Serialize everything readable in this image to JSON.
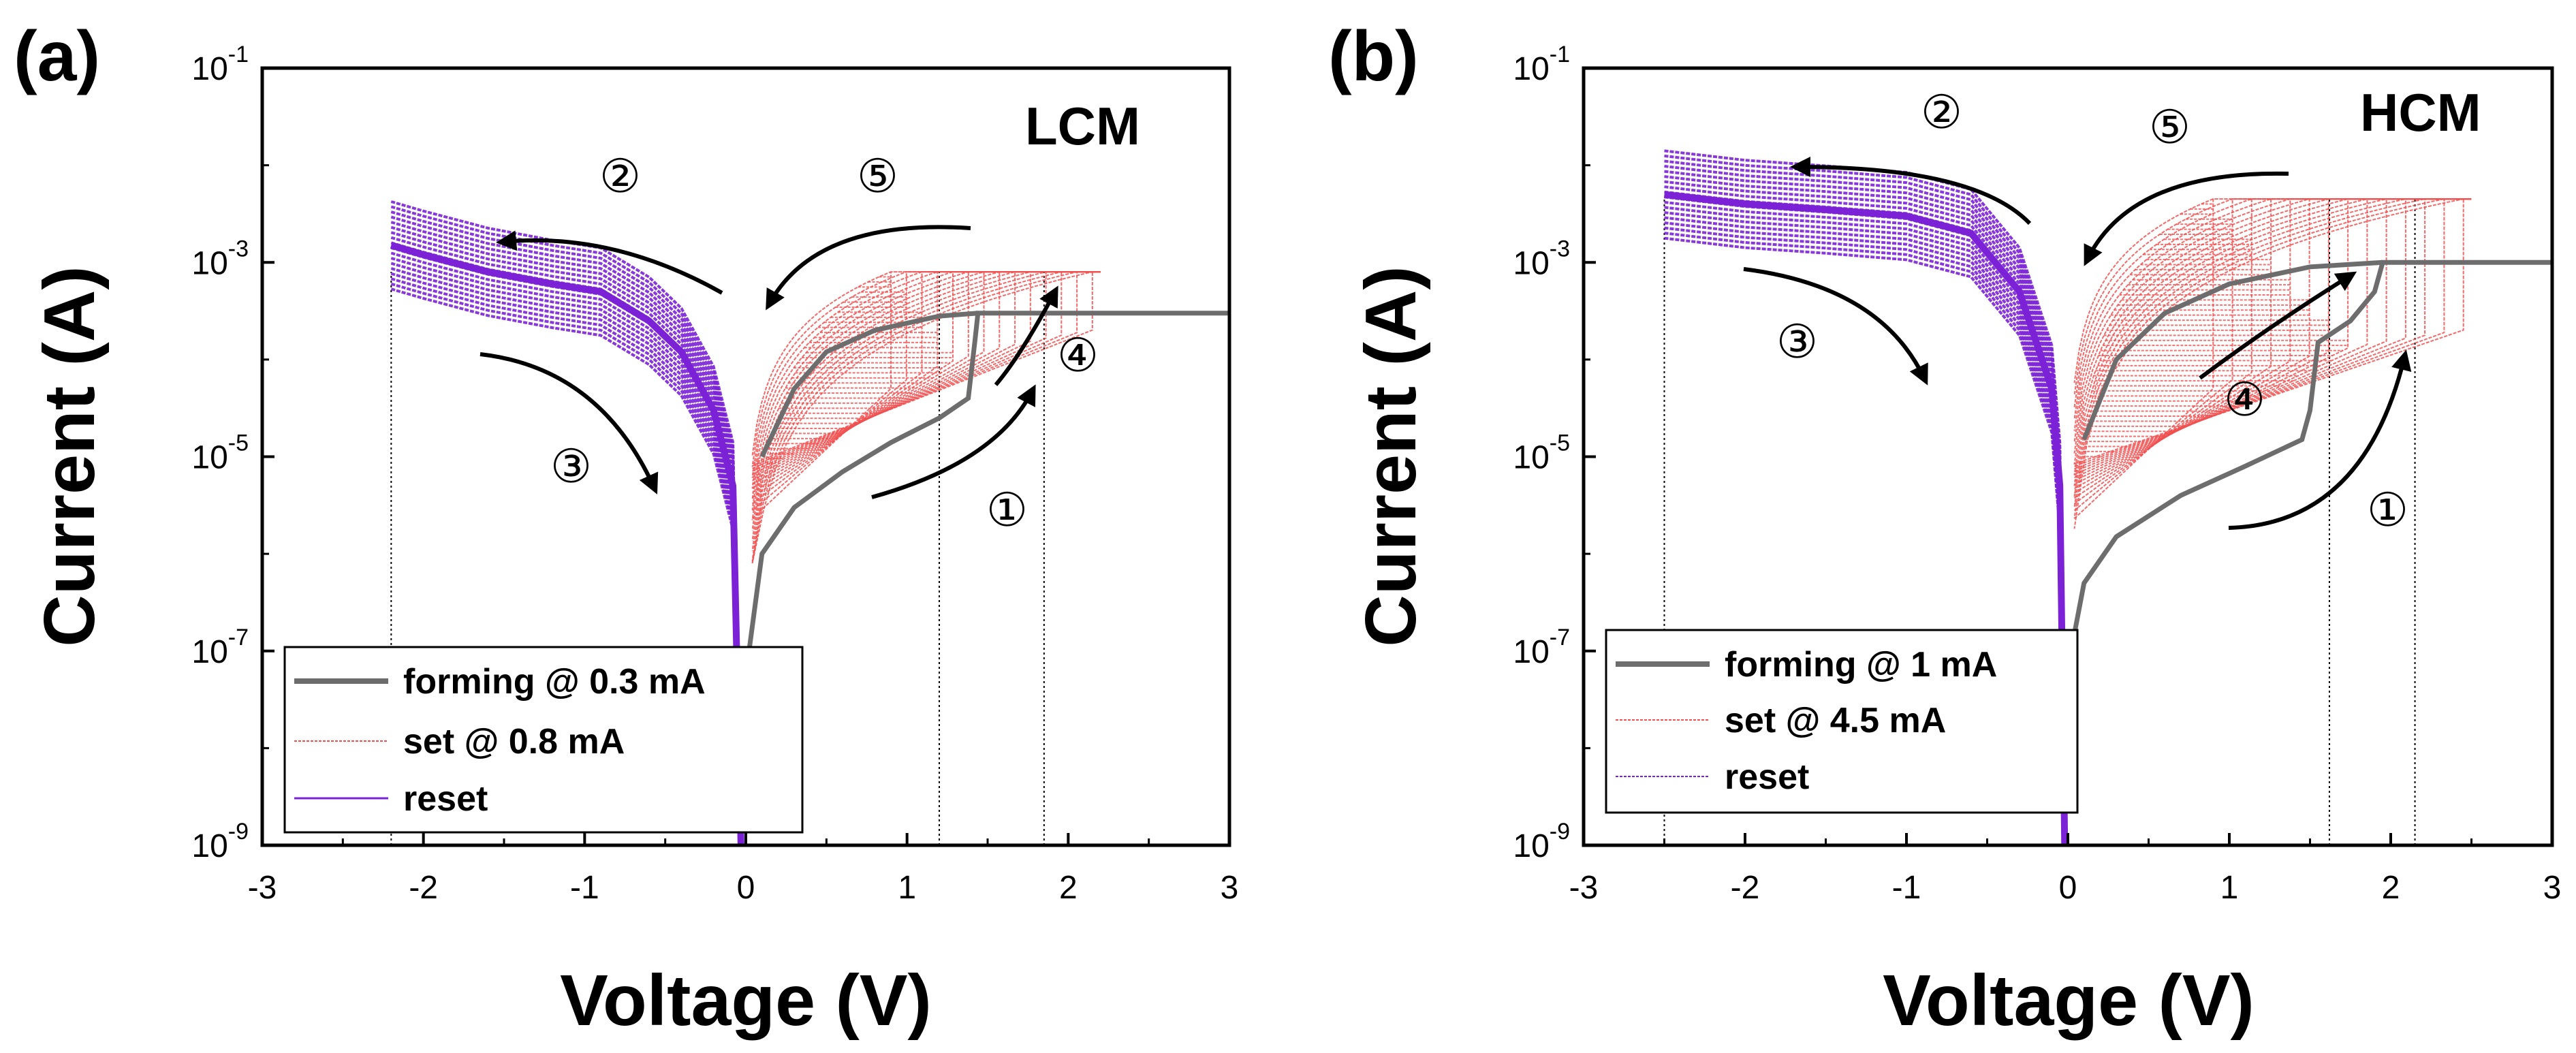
{
  "chart_data": [
    {
      "type": "line",
      "panel_label": "(a)",
      "inset_label": "LCM",
      "xlabel": "Voltage (V)",
      "ylabel": "Current (A)",
      "xlim": [
        -3,
        3
      ],
      "ylim": [
        1e-09,
        0.1
      ],
      "yscale": "log",
      "x_ticks": [
        "-3",
        "-2",
        "-1",
        "0",
        "1",
        "2",
        "3"
      ],
      "y_ticks": [
        {
          "base": "10",
          "exp": "-9"
        },
        {
          "base": "10",
          "exp": "-7"
        },
        {
          "base": "10",
          "exp": "-5"
        },
        {
          "base": "10",
          "exp": "-3"
        },
        {
          "base": "10",
          "exp": "-1"
        }
      ],
      "legend": [
        {
          "label": "forming @ 0.3 mA",
          "color": "#6d6d6d"
        },
        {
          "label": "set @ 0.8 mA",
          "color": "#f05050"
        },
        {
          "label": "reset",
          "color": "#7b22d6"
        }
      ],
      "reference_lines_v": [
        -2.2,
        1.2,
        1.85
      ],
      "compliance": {
        "forming": 0.0003,
        "set": 0.0008
      },
      "series": [
        {
          "name": "forming @ 0.3 mA",
          "x": [
            0.02,
            0.1,
            0.3,
            0.6,
            0.9,
            1.2,
            1.38,
            1.42,
            1.44,
            1.6,
            2.0,
            3.0
          ],
          "y": [
            1e-07,
            1e-06,
            3e-06,
            7e-06,
            1.4e-05,
            2.5e-05,
            4e-05,
            0.00015,
            0.0003,
            0.0003,
            0.0003,
            0.0003
          ]
        },
        {
          "name": "forming @ 0.3 mA (return)",
          "x": [
            1.44,
            1.2,
            0.8,
            0.5,
            0.3,
            0.1
          ],
          "y": [
            0.0003,
            0.00028,
            0.0002,
            0.00012,
            5e-05,
            1e-05
          ]
        },
        {
          "name": "set @ 0.8 mA",
          "x_range": [
            0,
            2.2
          ],
          "y_range": [
            1e-06,
            0.0008
          ]
        },
        {
          "name": "reset",
          "x": [
            -2.2,
            -2.0,
            -1.6,
            -1.2,
            -0.9,
            -0.6,
            -0.4,
            -0.2,
            -0.08,
            -0.03
          ],
          "y": [
            0.0015,
            0.0012,
            0.0008,
            0.0006,
            0.0005,
            0.00025,
            0.00012,
            3e-05,
            5e-06,
            1e-09
          ]
        }
      ],
      "annotations": [
        {
          "text": "①",
          "x": 1.6,
          "y": 3e-06
        },
        {
          "text": "②",
          "x": -0.8,
          "y": 0.003
        },
        {
          "text": "③",
          "x": -1.1,
          "y": 7e-06
        },
        {
          "text": "④",
          "x": 2.05,
          "y": 6e-05
        },
        {
          "text": "⑤",
          "x": 0.8,
          "y": 0.003
        }
      ]
    },
    {
      "type": "line",
      "panel_label": "(b)",
      "inset_label": "HCM",
      "xlabel": "Voltage (V)",
      "ylabel": "Current (A)",
      "xlim": [
        -3,
        3
      ],
      "ylim": [
        1e-09,
        0.1
      ],
      "yscale": "log",
      "x_ticks": [
        "-3",
        "-2",
        "-1",
        "0",
        "1",
        "2",
        "3"
      ],
      "y_ticks": [
        {
          "base": "10",
          "exp": "-9"
        },
        {
          "base": "10",
          "exp": "-7"
        },
        {
          "base": "10",
          "exp": "-5"
        },
        {
          "base": "10",
          "exp": "-3"
        },
        {
          "base": "10",
          "exp": "-1"
        }
      ],
      "legend": [
        {
          "label": "forming @ 1 mA",
          "color": "#6d6d6d"
        },
        {
          "label": "set @ 4.5 mA",
          "color": "#f05050"
        },
        {
          "label": "reset",
          "color": "#7b22d6"
        }
      ],
      "reference_lines_v": [
        -2.5,
        1.62,
        2.15
      ],
      "compliance": {
        "forming": 0.001,
        "set": 0.0045
      },
      "series": [
        {
          "name": "forming @ 1 mA",
          "x": [
            0.02,
            0.1,
            0.3,
            0.7,
            1.1,
            1.45,
            1.5,
            1.55,
            1.75,
            1.9,
            1.95,
            2.2,
            3.0
          ],
          "y": [
            1e-07,
            5e-07,
            1.5e-06,
            4e-06,
            8e-06,
            1.5e-05,
            3e-05,
            0.00015,
            0.00025,
            0.0005,
            0.001,
            0.001,
            0.001
          ]
        },
        {
          "name": "forming @ 1 mA (return)",
          "x": [
            1.95,
            1.5,
            1.0,
            0.6,
            0.3,
            0.1
          ],
          "y": [
            0.001,
            0.0009,
            0.0006,
            0.0003,
            0.0001,
            1.5e-05
          ]
        },
        {
          "name": "set @ 4.5 mA",
          "x_range": [
            0,
            2.5
          ],
          "y_range": [
            1e-06,
            0.0045
          ]
        },
        {
          "name": "reset",
          "x": [
            -2.5,
            -2.0,
            -1.5,
            -1.0,
            -0.6,
            -0.3,
            -0.1,
            -0.05,
            -0.02
          ],
          "y": [
            0.005,
            0.004,
            0.0035,
            0.003,
            0.002,
            0.0005,
            5e-05,
            5e-06,
            1e-09
          ]
        }
      ],
      "annotations": [
        {
          "text": "①",
          "x": 1.9,
          "y": 3e-06
        },
        {
          "text": "②",
          "x": -0.5,
          "y": 0.02
        },
        {
          "text": "③",
          "x": -1.6,
          "y": 0.00025
        },
        {
          "text": "④",
          "x": 1.3,
          "y": 3.5e-05
        },
        {
          "text": "⑤",
          "x": 0.7,
          "y": 0.01
        }
      ]
    }
  ]
}
